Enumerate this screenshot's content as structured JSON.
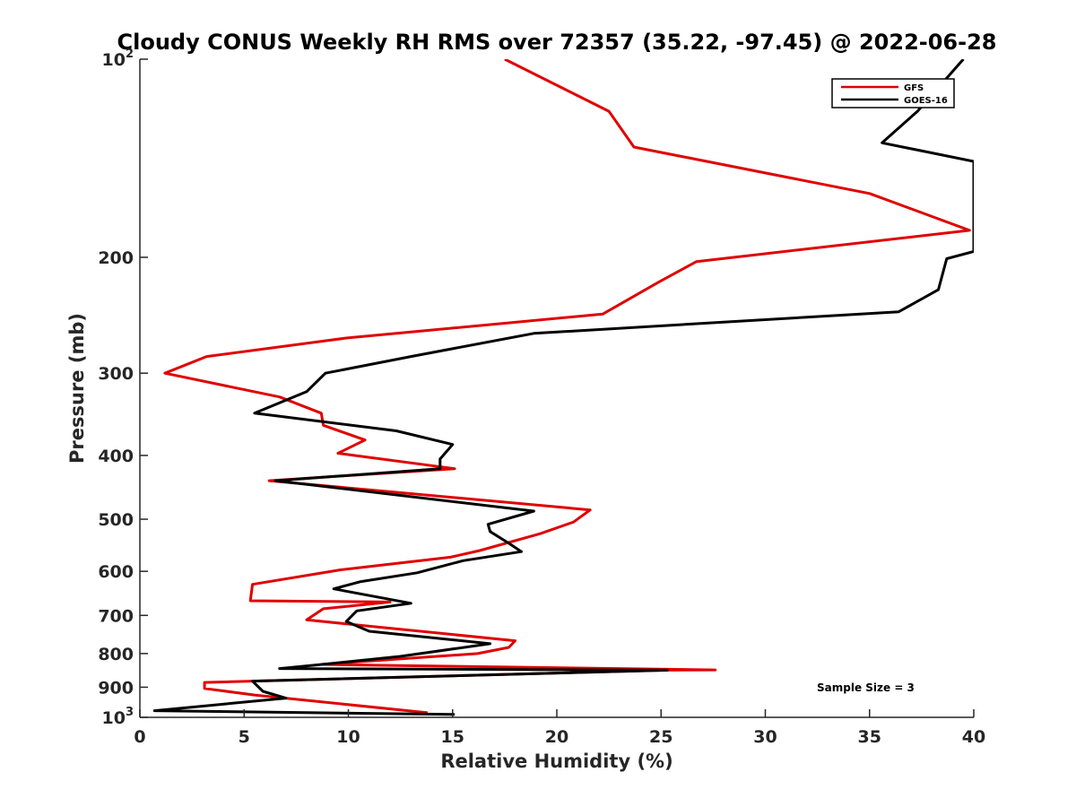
{
  "chart_data": {
    "type": "line",
    "title": "Cloudy CONUS Weekly RH RMS over 72357 (35.22, -97.45) @ 2022-06-28",
    "xlabel": "Relative Humidity (%)",
    "ylabel": "Pressure (mb)",
    "xlim": [
      0,
      40
    ],
    "ylim": [
      100,
      1000
    ],
    "y_scale": "log",
    "y_reversed": true,
    "x_ticks": [
      "0",
      "5",
      "10",
      "15",
      "20",
      "25",
      "30",
      "35",
      "40"
    ],
    "y_ticks": [
      {
        "value": 100,
        "base": "10",
        "exp": "2"
      },
      {
        "value": 200,
        "label": "200"
      },
      {
        "value": 300,
        "label": "300"
      },
      {
        "value": 400,
        "label": "400"
      },
      {
        "value": 500,
        "label": "500"
      },
      {
        "value": 600,
        "label": "600"
      },
      {
        "value": 700,
        "label": "700"
      },
      {
        "value": 800,
        "label": "800"
      },
      {
        "value": 900,
        "label": "900"
      },
      {
        "value": 1000,
        "base": "10",
        "exp": "3"
      }
    ],
    "legend_position": "top-right",
    "annotation": "Sample Size = 3",
    "series": [
      {
        "name": "GFS",
        "color": "#e00000",
        "points": [
          [
            17.5,
            100
          ],
          [
            22.5,
            120
          ],
          [
            23.7,
            136
          ],
          [
            35.0,
            160
          ],
          [
            39.8,
            182
          ],
          [
            26.7,
            203
          ],
          [
            24.9,
            218
          ],
          [
            22.2,
            244
          ],
          [
            10.0,
            265
          ],
          [
            3.2,
            283
          ],
          [
            1.2,
            300
          ],
          [
            6.7,
            326
          ],
          [
            8.7,
            345
          ],
          [
            8.8,
            360
          ],
          [
            10.8,
            379
          ],
          [
            9.5,
            397
          ],
          [
            15.1,
            419
          ],
          [
            6.2,
            437
          ],
          [
            21.6,
            484
          ],
          [
            20.8,
            505
          ],
          [
            19.2,
            526
          ],
          [
            16.3,
            558
          ],
          [
            14.9,
            571
          ],
          [
            9.6,
            597
          ],
          [
            5.4,
            628
          ],
          [
            5.3,
            665
          ],
          [
            12.0,
            668
          ],
          [
            8.8,
            684
          ],
          [
            8.0,
            711
          ],
          [
            18.0,
            765
          ],
          [
            17.7,
            783
          ],
          [
            16.2,
            800
          ],
          [
            8.7,
            831
          ],
          [
            27.6,
            847
          ],
          [
            25.3,
            848
          ],
          [
            3.1,
            885
          ],
          [
            3.1,
            904
          ],
          [
            5.5,
            925
          ],
          [
            13.8,
            984
          ]
        ]
      },
      {
        "name": "GOES-16",
        "color": "#000000",
        "points": [
          [
            39.5,
            100
          ],
          [
            37.3,
            120
          ],
          [
            35.6,
            134
          ],
          [
            40.0,
            143
          ],
          [
            40.0,
            196
          ],
          [
            38.7,
            201
          ],
          [
            38.3,
            224
          ],
          [
            36.4,
            242
          ],
          [
            18.9,
            261
          ],
          [
            13.0,
            283
          ],
          [
            8.9,
            300
          ],
          [
            8.0,
            320
          ],
          [
            5.5,
            345
          ],
          [
            12.3,
            367
          ],
          [
            15.0,
            385
          ],
          [
            14.4,
            405
          ],
          [
            14.4,
            419
          ],
          [
            6.5,
            437
          ],
          [
            18.9,
            486
          ],
          [
            16.7,
            509
          ],
          [
            16.8,
            522
          ],
          [
            17.7,
            544
          ],
          [
            18.3,
            560
          ],
          [
            15.5,
            578
          ],
          [
            13.3,
            603
          ],
          [
            10.6,
            622
          ],
          [
            9.3,
            638
          ],
          [
            13.0,
            671
          ],
          [
            10.4,
            689
          ],
          [
            9.9,
            715
          ],
          [
            11.0,
            740
          ],
          [
            16.8,
            773
          ],
          [
            12.5,
            808
          ],
          [
            8.9,
            830
          ],
          [
            6.7,
            843
          ],
          [
            25.3,
            848
          ],
          [
            5.4,
            881
          ],
          [
            5.9,
            913
          ],
          [
            7.0,
            935
          ],
          [
            0.7,
            977
          ],
          [
            15.1,
            990
          ]
        ]
      }
    ]
  }
}
